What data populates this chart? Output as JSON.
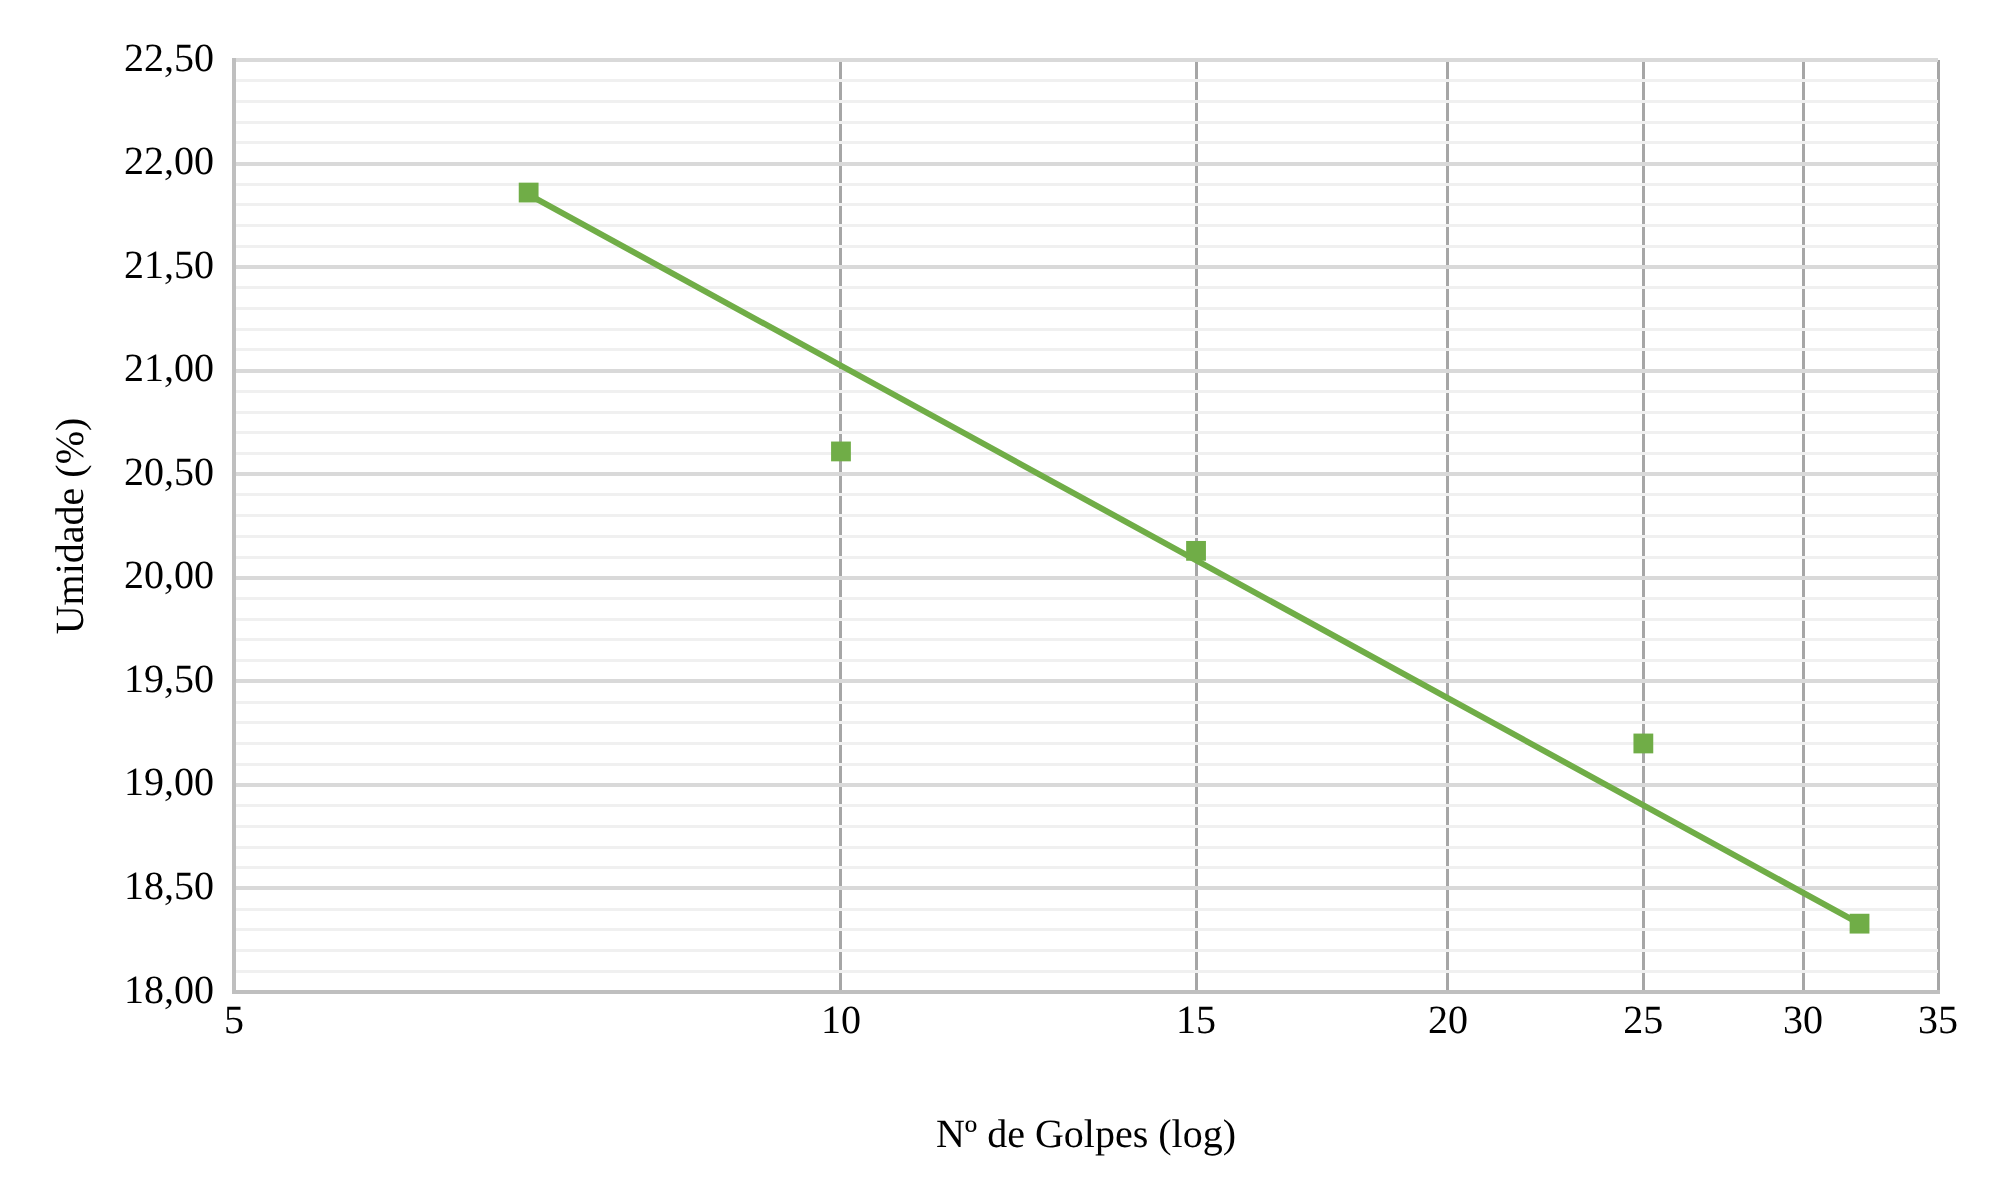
{
  "chart_data": {
    "type": "scatter",
    "xlabel": "Nº de Golpes (log)",
    "ylabel": "Umidade (%)",
    "log": "x",
    "grid": true,
    "legend": false,
    "xlim": [
      5,
      35
    ],
    "xticks": [
      5,
      10,
      15,
      20,
      25,
      30,
      35
    ],
    "ylim": [
      18,
      22.5
    ],
    "yticks": [
      {
        "value": 18,
        "label": "18,00"
      },
      {
        "value": 18.1,
        "label": null
      },
      {
        "value": 18.2,
        "label": null
      },
      {
        "value": 18.3,
        "label": null
      },
      {
        "value": 18.4,
        "label": null
      },
      {
        "value": 18.5,
        "label": "18,50"
      },
      {
        "value": 18.6,
        "label": null
      },
      {
        "value": 18.7,
        "label": null
      },
      {
        "value": 18.8,
        "label": null
      },
      {
        "value": 18.9,
        "label": null
      },
      {
        "value": 19,
        "label": "19,00"
      },
      {
        "value": 19.1,
        "label": null
      },
      {
        "value": 19.2,
        "label": null
      },
      {
        "value": 19.3,
        "label": null
      },
      {
        "value": 19.4,
        "label": null
      },
      {
        "value": 19.5,
        "label": "19,50"
      },
      {
        "value": 19.6,
        "label": null
      },
      {
        "value": 19.7,
        "label": null
      },
      {
        "value": 19.8,
        "label": null
      },
      {
        "value": 19.9,
        "label": null
      },
      {
        "value": 20,
        "label": "20,00"
      },
      {
        "value": 20.1,
        "label": null
      },
      {
        "value": 20.2,
        "label": null
      },
      {
        "value": 20.3,
        "label": null
      },
      {
        "value": 20.4,
        "label": null
      },
      {
        "value": 20.5,
        "label": "20,50"
      },
      {
        "value": 20.6,
        "label": null
      },
      {
        "value": 20.7,
        "label": null
      },
      {
        "value": 20.8,
        "label": null
      },
      {
        "value": 20.9,
        "label": null
      },
      {
        "value": 21,
        "label": "21,00"
      },
      {
        "value": 21.1,
        "label": null
      },
      {
        "value": 21.2,
        "label": null
      },
      {
        "value": 21.3,
        "label": null
      },
      {
        "value": 21.4,
        "label": null
      },
      {
        "value": 21.5,
        "label": "21,50"
      },
      {
        "value": 21.6,
        "label": null
      },
      {
        "value": 21.7,
        "label": null
      },
      {
        "value": 21.8,
        "label": null
      },
      {
        "value": 21.9,
        "label": null
      },
      {
        "value": 22,
        "label": "22,00"
      },
      {
        "value": 22.1,
        "label": null
      },
      {
        "value": 22.2,
        "label": null
      },
      {
        "value": 22.3,
        "label": null
      },
      {
        "value": 22.4,
        "label": null
      },
      {
        "value": 22.5,
        "label": "22,50"
      }
    ],
    "series": [
      {
        "type": "scatter",
        "color": "#70ad47",
        "marker": "square",
        "x": [
          7,
          10,
          15,
          25,
          32
        ],
        "values": [
          21.86,
          20.61,
          20.13,
          19.2,
          18.33
        ]
      },
      {
        "type": "line",
        "color": "#70ad47",
        "marker": "none",
        "line_style": "solid",
        "x": [
          7,
          32
        ],
        "values": [
          21.85,
          18.33
        ]
      }
    ]
  }
}
